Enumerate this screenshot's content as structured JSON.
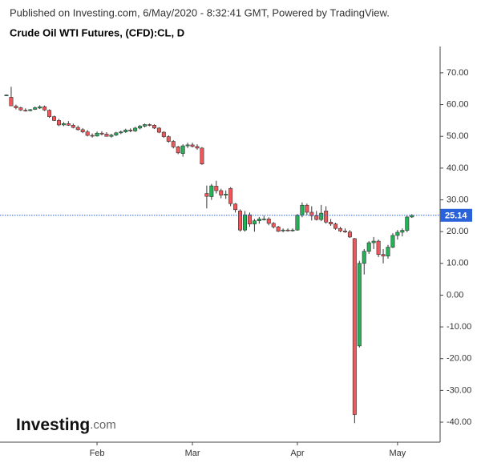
{
  "header": {
    "published": "Published on Investing.com, 6/May/2020 - 8:32:41 GMT, Powered by TradingView.",
    "title": "Crude Oil WTI Futures, (CFD):CL, D"
  },
  "logo": {
    "main": "Investing",
    "suffix": ".com"
  },
  "chart_data": {
    "type": "candlestick",
    "categories": [
      null,
      null,
      null,
      null,
      null,
      null,
      null,
      null,
      null,
      null,
      null,
      null,
      null,
      null,
      null,
      null,
      null,
      null,
      null,
      "Feb",
      null,
      null,
      null,
      null,
      null,
      null,
      null,
      null,
      null,
      null,
      null,
      null,
      null,
      null,
      null,
      null,
      null,
      null,
      null,
      "Mar",
      null,
      null,
      null,
      null,
      null,
      null,
      null,
      null,
      null,
      null,
      null,
      null,
      null,
      null,
      null,
      null,
      null,
      null,
      null,
      null,
      null,
      "Apr",
      null,
      null,
      null,
      null,
      null,
      null,
      null,
      null,
      null,
      null,
      null,
      null,
      null,
      null,
      null,
      null,
      null,
      null,
      null,
      null,
      "May",
      null,
      null,
      null
    ],
    "open": [
      63.0,
      62.3,
      59.5,
      59.0,
      58.2,
      58.1,
      58.5,
      58.9,
      59.3,
      58.2,
      56.2,
      55.0,
      53.6,
      54.0,
      53.5,
      52.8,
      52.1,
      51.4,
      50.3,
      50.1,
      51.0,
      50.7,
      50.0,
      50.4,
      51.1,
      51.4,
      52.0,
      51.7,
      52.6,
      53.2,
      53.7,
      53.5,
      52.6,
      51.3,
      49.9,
      48.4,
      46.7,
      44.6,
      47.0,
      47.3,
      46.8,
      46.3,
      32.0,
      31.0,
      34.3,
      32.9,
      31.5,
      33.6,
      28.7,
      26.5,
      20.5,
      25.3,
      22.4,
      23.4,
      24.0,
      24.0,
      22.6,
      21.5,
      20.3,
      20.5,
      20.4,
      20.5,
      25.2,
      28.3,
      26.1,
      25.0,
      23.8,
      26.5,
      23.0,
      22.4,
      21.0,
      20.2,
      19.9,
      17.8,
      -16.0,
      10.0,
      13.8,
      16.5,
      17.0,
      12.8,
      12.3,
      15.1,
      18.8,
      19.8,
      20.4,
      24.6
    ],
    "high": [
      63.2,
      65.6,
      60.0,
      59.3,
      58.8,
      58.6,
      59.4,
      59.8,
      59.7,
      58.5,
      56.5,
      55.5,
      54.5,
      54.8,
      54.0,
      53.4,
      52.6,
      52.0,
      50.9,
      51.5,
      51.6,
      51.3,
      50.8,
      51.4,
      51.8,
      52.4,
      52.5,
      53.0,
      53.6,
      54.0,
      54.0,
      53.8,
      52.9,
      51.6,
      50.3,
      48.8,
      47.0,
      47.5,
      48.0,
      48.0,
      47.5,
      46.6,
      34.5,
      35.0,
      36.0,
      33.5,
      33.0,
      34.0,
      29.0,
      27.0,
      26.5,
      26.0,
      24.0,
      24.6,
      25.0,
      24.5,
      23.0,
      21.8,
      21.0,
      21.0,
      21.0,
      25.5,
      29.2,
      28.8,
      28.0,
      26.5,
      28.4,
      28.0,
      24.0,
      22.8,
      21.5,
      21.0,
      20.5,
      18.0,
      10.8,
      14.5,
      17.0,
      18.3,
      17.5,
      14.5,
      15.8,
      19.5,
      20.5,
      21.0,
      25.0,
      25.5
    ],
    "low": [
      62.8,
      59.6,
      58.5,
      58.0,
      57.8,
      57.9,
      58.3,
      58.6,
      58.0,
      55.8,
      54.8,
      53.2,
      53.2,
      53.3,
      52.5,
      51.8,
      51.0,
      50.0,
      49.6,
      49.9,
      50.3,
      49.9,
      49.6,
      50.1,
      50.7,
      51.1,
      51.3,
      51.4,
      52.2,
      52.8,
      53.2,
      52.3,
      51.0,
      49.5,
      48.0,
      46.2,
      44.4,
      43.6,
      46.3,
      46.5,
      45.8,
      41.0,
      27.3,
      30.0,
      32.0,
      30.5,
      30.3,
      28.0,
      26.0,
      20.0,
      20.0,
      21.5,
      20.0,
      22.5,
      23.5,
      22.0,
      21.0,
      19.9,
      19.8,
      20.0,
      20.0,
      20.3,
      24.5,
      25.2,
      23.5,
      23.5,
      23.3,
      22.5,
      21.8,
      20.6,
      19.8,
      19.6,
      18.0,
      -40.3,
      -16.5,
      6.5,
      13.0,
      14.5,
      12.0,
      10.0,
      11.5,
      14.8,
      17.5,
      18.5,
      19.8,
      24.3
    ],
    "close": [
      63.0,
      59.6,
      59.0,
      58.3,
      58.1,
      58.4,
      59.0,
      59.3,
      58.3,
      56.2,
      55.0,
      53.6,
      54.0,
      53.5,
      52.8,
      52.1,
      51.4,
      50.3,
      50.1,
      51.0,
      50.7,
      50.0,
      50.4,
      51.1,
      51.4,
      52.0,
      51.7,
      52.6,
      53.2,
      53.7,
      53.5,
      52.6,
      51.3,
      49.9,
      48.4,
      46.7,
      44.8,
      47.0,
      47.3,
      46.8,
      46.3,
      41.3,
      31.1,
      34.4,
      32.9,
      31.5,
      31.8,
      28.8,
      26.9,
      20.5,
      25.3,
      22.4,
      23.4,
      24.0,
      24.0,
      22.6,
      21.5,
      20.1,
      20.5,
      20.4,
      20.5,
      25.2,
      28.3,
      26.1,
      25.0,
      23.8,
      25.8,
      23.0,
      22.4,
      21.0,
      20.2,
      19.9,
      18.3,
      -37.6,
      10.0,
      13.8,
      16.5,
      17.0,
      12.8,
      12.3,
      15.1,
      18.8,
      19.8,
      20.4,
      24.6,
      25.1
    ],
    "up_color": "#22b356",
    "down_color": "#f0565a",
    "last_price": 25.14,
    "last_price_color": "#2962d9",
    "ylim": [
      -46.3,
      78.3
    ],
    "yticks": [
      {
        "value": 70,
        "label": "70.00"
      },
      {
        "value": 60,
        "label": "60.00"
      },
      {
        "value": 50,
        "label": "50.00"
      },
      {
        "value": 40,
        "label": "40.00"
      },
      {
        "value": 30,
        "label": "30.00"
      },
      {
        "value": 20,
        "label": "20.00"
      },
      {
        "value": 10,
        "label": "10.00"
      },
      {
        "value": 0,
        "label": "0.00"
      },
      {
        "value": -10,
        "label": "-10.00"
      },
      {
        "value": -20,
        "label": "-20.00"
      },
      {
        "value": -30,
        "label": "-30.00"
      },
      {
        "value": -40,
        "label": "-40.00"
      }
    ]
  }
}
